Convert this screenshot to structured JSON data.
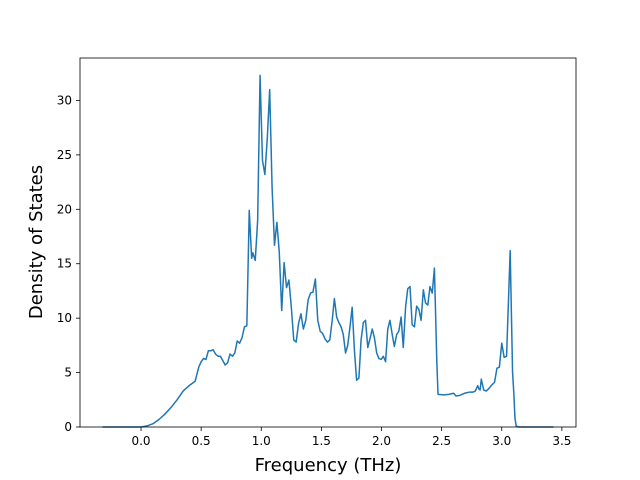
{
  "chart_data": {
    "type": "line",
    "x_label": "Frequency (THz)",
    "y_label": "Density of States",
    "x": [
      -0.32,
      0.0,
      0.05,
      0.1,
      0.15,
      0.2,
      0.25,
      0.3,
      0.35,
      0.4,
      0.45,
      0.48,
      0.5,
      0.52,
      0.54,
      0.56,
      0.58,
      0.6,
      0.62,
      0.64,
      0.66,
      0.68,
      0.7,
      0.72,
      0.74,
      0.76,
      0.78,
      0.8,
      0.82,
      0.84,
      0.86,
      0.88,
      0.9,
      0.92,
      0.93,
      0.95,
      0.97,
      0.99,
      1.01,
      1.03,
      1.05,
      1.07,
      1.09,
      1.11,
      1.13,
      1.15,
      1.17,
      1.19,
      1.21,
      1.23,
      1.25,
      1.27,
      1.29,
      1.31,
      1.33,
      1.35,
      1.37,
      1.39,
      1.41,
      1.43,
      1.45,
      1.47,
      1.49,
      1.51,
      1.53,
      1.55,
      1.57,
      1.59,
      1.608,
      1.627,
      1.645,
      1.664,
      1.682,
      1.701,
      1.719,
      1.738,
      1.756,
      1.775,
      1.793,
      1.812,
      1.83,
      1.849,
      1.867,
      1.886,
      1.904,
      1.923,
      1.941,
      1.96,
      1.978,
      1.997,
      2.015,
      2.034,
      2.052,
      2.07,
      2.089,
      2.107,
      2.126,
      2.144,
      2.163,
      2.181,
      2.2,
      2.218,
      2.237,
      2.255,
      2.274,
      2.292,
      2.311,
      2.329,
      2.348,
      2.366,
      2.385,
      2.403,
      2.422,
      2.44,
      2.46,
      2.47,
      2.52,
      2.56,
      2.6,
      2.62,
      2.65,
      2.69,
      2.73,
      2.76,
      2.78,
      2.8,
      2.81,
      2.82,
      2.83,
      2.85,
      2.87,
      2.89,
      2.92,
      2.94,
      2.96,
      2.98,
      3.0,
      3.02,
      3.04,
      3.07,
      3.09,
      3.1,
      3.11,
      3.12,
      3.14,
      3.43
    ],
    "series": [
      {
        "color": "#1f77b4",
        "values": [
          0,
          0,
          0.1,
          0.3,
          0.7,
          1.2,
          1.8,
          2.5,
          3.3,
          3.8,
          4.2,
          5.5,
          6.0,
          6.3,
          6.2,
          7.0,
          7.0,
          7.1,
          6.7,
          6.5,
          6.5,
          6.1,
          5.7,
          5.9,
          6.7,
          6.5,
          6.8,
          7.9,
          7.7,
          8.2,
          9.2,
          9.3,
          19.9,
          15.5,
          16.0,
          15.3,
          19.0,
          32.3,
          24.5,
          23.2,
          26.5,
          31.0,
          22.0,
          16.7,
          18.8,
          16.0,
          10.7,
          15.1,
          12.8,
          13.5,
          11.0,
          8.0,
          7.8,
          9.5,
          10.4,
          9.0,
          9.8,
          11.7,
          12.3,
          12.4,
          13.6,
          9.8,
          8.8,
          8.6,
          8.1,
          7.8,
          8.0,
          9.8,
          11.8,
          10.1,
          9.6,
          9.2,
          8.5,
          6.8,
          7.5,
          9.2,
          11.0,
          7.0,
          4.3,
          4.5,
          8.0,
          9.6,
          9.8,
          7.3,
          8.1,
          9.0,
          8.2,
          6.8,
          6.3,
          6.2,
          6.5,
          6.0,
          9.0,
          9.8,
          8.5,
          7.4,
          8.5,
          8.8,
          10.1,
          7.3,
          11.0,
          12.7,
          12.9,
          9.4,
          9.2,
          11.1,
          10.8,
          9.8,
          12.6,
          11.4,
          11.2,
          12.9,
          12.3,
          14.6,
          6.0,
          3.0,
          2.95,
          3.0,
          3.1,
          2.85,
          2.9,
          3.1,
          3.2,
          3.2,
          3.3,
          3.8,
          3.5,
          3.4,
          4.4,
          3.4,
          3.3,
          3.5,
          3.9,
          4.1,
          5.4,
          5.5,
          7.7,
          6.4,
          6.5,
          16.2,
          5.0,
          3.2,
          0.8,
          0.1,
          0,
          0
        ]
      }
    ],
    "xlim": [
      -0.5075,
      3.6175
    ],
    "ylim": [
      0,
      33.9
    ],
    "xticks": [
      {
        "value": 0,
        "label": "0.0"
      },
      0.5,
      {
        "value": 1,
        "label": "1.0"
      },
      1.5,
      {
        "value": 2,
        "label": "2.0"
      },
      2.5,
      {
        "value": 3,
        "label": "3.0"
      },
      3.5
    ],
    "yticks": [
      0,
      5,
      10,
      15,
      20,
      25,
      30
    ]
  }
}
